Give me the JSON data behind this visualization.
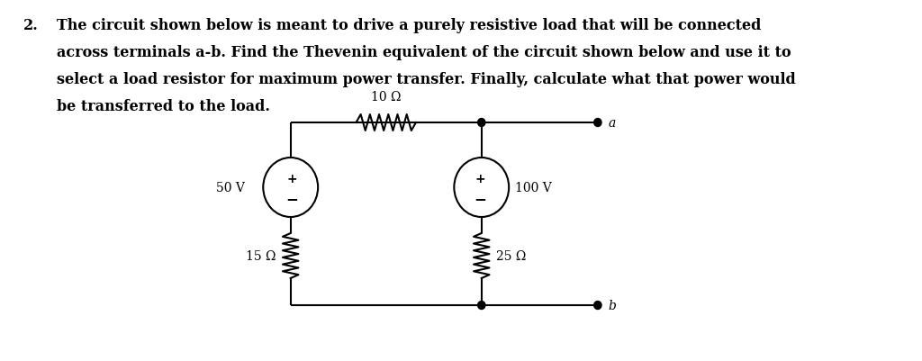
{
  "background_color": "#ffffff",
  "text_color": "#000000",
  "problem_number": "2.",
  "problem_text_line1": "The circuit shown below is meant to drive a purely resistive load that will be connected",
  "problem_text_line2": "across terminals a-b. Find the Thevenin equivalent of the circuit shown below and use it to",
  "problem_text_line3": "select a load resistor for maximum power transfer. Finally, calculate what that power would",
  "problem_text_line4": "be transferred to the load.",
  "font_size_text": 11.5,
  "font_family": "serif",
  "font_weight": "bold",
  "circuit": {
    "v1_label": "50 V",
    "v2_label": "100 V",
    "r1_label": "10 Ω",
    "r2_label": "15 Ω",
    "r3_label": "25 Ω",
    "terminal_a": "a",
    "terminal_b": "b"
  }
}
